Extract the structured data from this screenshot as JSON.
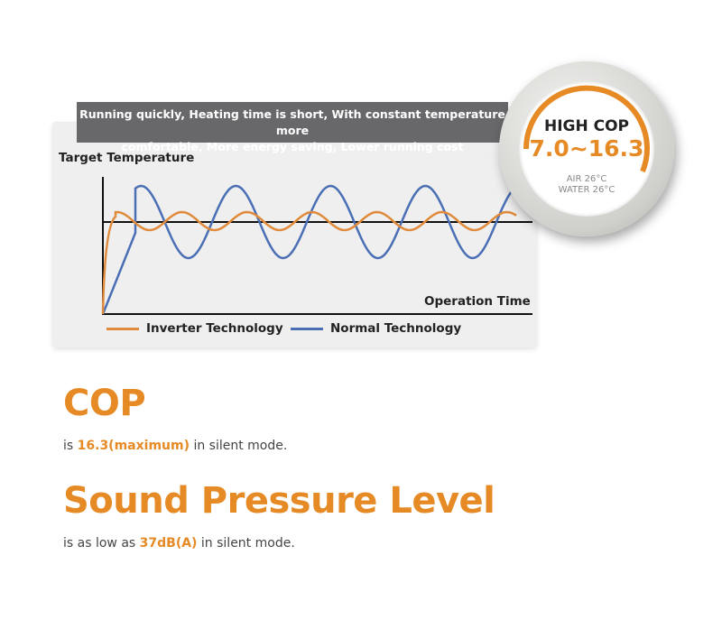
{
  "banner": {
    "line1": "Running quickly, Heating time is short, With constant temperature more",
    "line2": "comfortable, More energy saving, Lower running cost"
  },
  "chart_data": {
    "type": "line",
    "ylabel": "Target Temperature",
    "xlabel": "Operation Time",
    "legend_position": "bottom",
    "grid": false,
    "series": [
      {
        "name": "Inverter Technology",
        "color": "#e08a3c",
        "behavior": "fast rise, small oscillation around target"
      },
      {
        "name": "Normal Technology",
        "color": "#4a6fb5",
        "behavior": "slow rise, large oscillation around target"
      }
    ]
  },
  "badge": {
    "title": "HIGH COP",
    "range": "7.0~16.3",
    "air": "AIR 26°C",
    "water": "WATER 26°C",
    "accent": "#e68a25"
  },
  "cop": {
    "heading": "COP",
    "pre": "is ",
    "value": "16.3(maximum)",
    "post": " in silent mode."
  },
  "spl": {
    "heading": "Sound Pressure Level",
    "pre": "is as low as ",
    "value": "37dB(A)",
    "post": " in silent mode."
  }
}
